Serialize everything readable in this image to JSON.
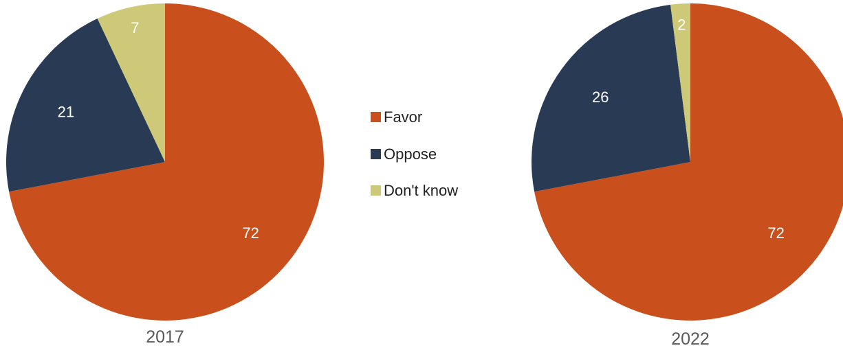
{
  "chart_data": [
    {
      "type": "pie",
      "title": "2017",
      "categories": [
        "Favor",
        "Oppose",
        "Don't know"
      ],
      "values": [
        72,
        21,
        7
      ],
      "labels": [
        "72",
        "21",
        "7"
      ]
    },
    {
      "type": "pie",
      "title": "2022",
      "categories": [
        "Favor",
        "Oppose",
        "Don't know"
      ],
      "values": [
        72,
        26,
        2
      ],
      "labels": [
        "72",
        "26",
        "2"
      ]
    }
  ],
  "legend": {
    "placement": "center",
    "items": [
      {
        "label": "Favor",
        "color": "#c9501c"
      },
      {
        "label": "Oppose",
        "color": "#283a54"
      },
      {
        "label": "Don't know",
        "color": "#cdc978"
      }
    ]
  },
  "colors": {
    "favor": "#c9501c",
    "oppose": "#283a54",
    "dont_know": "#cdc978",
    "label_text": "#ffffff",
    "caption_text": "#595959"
  }
}
